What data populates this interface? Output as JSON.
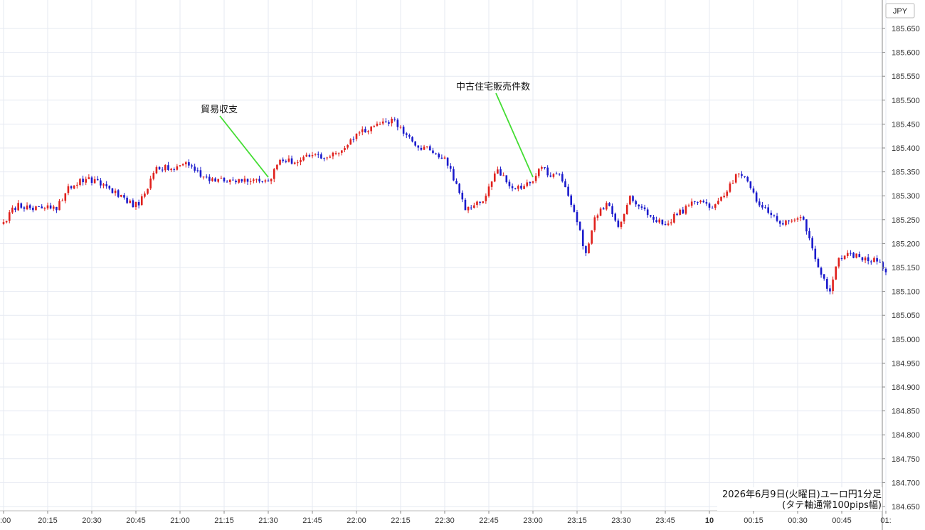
{
  "chart_data": {
    "type": "candlestick",
    "title": "2026年6月9日(火曜日)ユーロ円1分足",
    "subtitle": "(タテ軸通常100pips幅)",
    "y_unit": "JPY",
    "ylim": [
      184.65,
      185.675
    ],
    "y_ticks": [
      "185.650",
      "185.600",
      "185.550",
      "185.500",
      "185.450",
      "185.400",
      "185.350",
      "185.300",
      "185.250",
      "185.200",
      "185.150",
      "185.100",
      "185.050",
      "185.000",
      "184.950",
      "184.900",
      "184.850",
      "184.800",
      "184.750",
      "184.700",
      "184.650"
    ],
    "x_ticks": [
      ":00",
      "20:15",
      "20:30",
      "20:45",
      "21:00",
      "21:15",
      "21:30",
      "21:45",
      "22:00",
      "22:15",
      "22:30",
      "22:45",
      "23:00",
      "23:15",
      "23:30",
      "23:45",
      "10",
      "00:15",
      "00:30",
      "00:45",
      "01:"
    ],
    "bold_x_ticks": [
      "10"
    ],
    "colors": {
      "up": "#e0201c",
      "down": "#1a1acc",
      "annotation_line": "#44dd33",
      "grid": "#e6eaf2"
    },
    "annotations": [
      {
        "label": "貿易収支",
        "time_index": 90
      },
      {
        "label": "中古住宅販売件数",
        "time_index": 180
      }
    ],
    "anchors": [
      [
        0,
        185.245
      ],
      [
        5,
        185.285
      ],
      [
        10,
        185.27
      ],
      [
        15,
        185.28
      ],
      [
        18,
        185.27
      ],
      [
        22,
        185.32
      ],
      [
        28,
        185.335
      ],
      [
        35,
        185.32
      ],
      [
        42,
        185.285
      ],
      [
        46,
        185.28
      ],
      [
        52,
        185.36
      ],
      [
        58,
        185.355
      ],
      [
        62,
        185.37
      ],
      [
        68,
        185.34
      ],
      [
        75,
        185.33
      ],
      [
        80,
        185.335
      ],
      [
        86,
        185.335
      ],
      [
        90,
        185.33
      ],
      [
        94,
        185.375
      ],
      [
        100,
        185.37
      ],
      [
        105,
        185.385
      ],
      [
        110,
        185.38
      ],
      [
        115,
        185.395
      ],
      [
        120,
        185.43
      ],
      [
        125,
        185.445
      ],
      [
        130,
        185.455
      ],
      [
        133,
        185.46
      ],
      [
        136,
        185.43
      ],
      [
        140,
        185.405
      ],
      [
        145,
        185.395
      ],
      [
        150,
        185.38
      ],
      [
        154,
        185.325
      ],
      [
        157,
        185.27
      ],
      [
        160,
        185.28
      ],
      [
        164,
        185.3
      ],
      [
        168,
        185.355
      ],
      [
        172,
        185.32
      ],
      [
        176,
        185.315
      ],
      [
        180,
        185.33
      ],
      [
        183,
        185.36
      ],
      [
        186,
        185.34
      ],
      [
        189,
        185.345
      ],
      [
        192,
        185.3
      ],
      [
        195,
        185.245
      ],
      [
        198,
        185.18
      ],
      [
        201,
        185.255
      ],
      [
        205,
        185.285
      ],
      [
        209,
        185.235
      ],
      [
        213,
        185.3
      ],
      [
        217,
        185.275
      ],
      [
        221,
        185.25
      ],
      [
        225,
        185.24
      ],
      [
        229,
        185.26
      ],
      [
        233,
        185.28
      ],
      [
        237,
        185.29
      ],
      [
        241,
        185.275
      ],
      [
        245,
        185.3
      ],
      [
        249,
        185.345
      ],
      [
        253,
        185.33
      ],
      [
        257,
        185.28
      ],
      [
        261,
        185.26
      ],
      [
        265,
        185.24
      ],
      [
        269,
        185.25
      ],
      [
        272,
        185.25
      ],
      [
        275,
        185.19
      ],
      [
        278,
        185.135
      ],
      [
        281,
        185.1
      ],
      [
        284,
        185.17
      ],
      [
        288,
        185.18
      ],
      [
        292,
        185.165
      ],
      [
        296,
        185.17
      ],
      [
        300,
        185.14
      ]
    ],
    "note": "1-minute candles from 20:00 to about 01:00 (300 candles); close prices read off the chart at the listed minute offsets, intermediate candles interpolated."
  }
}
